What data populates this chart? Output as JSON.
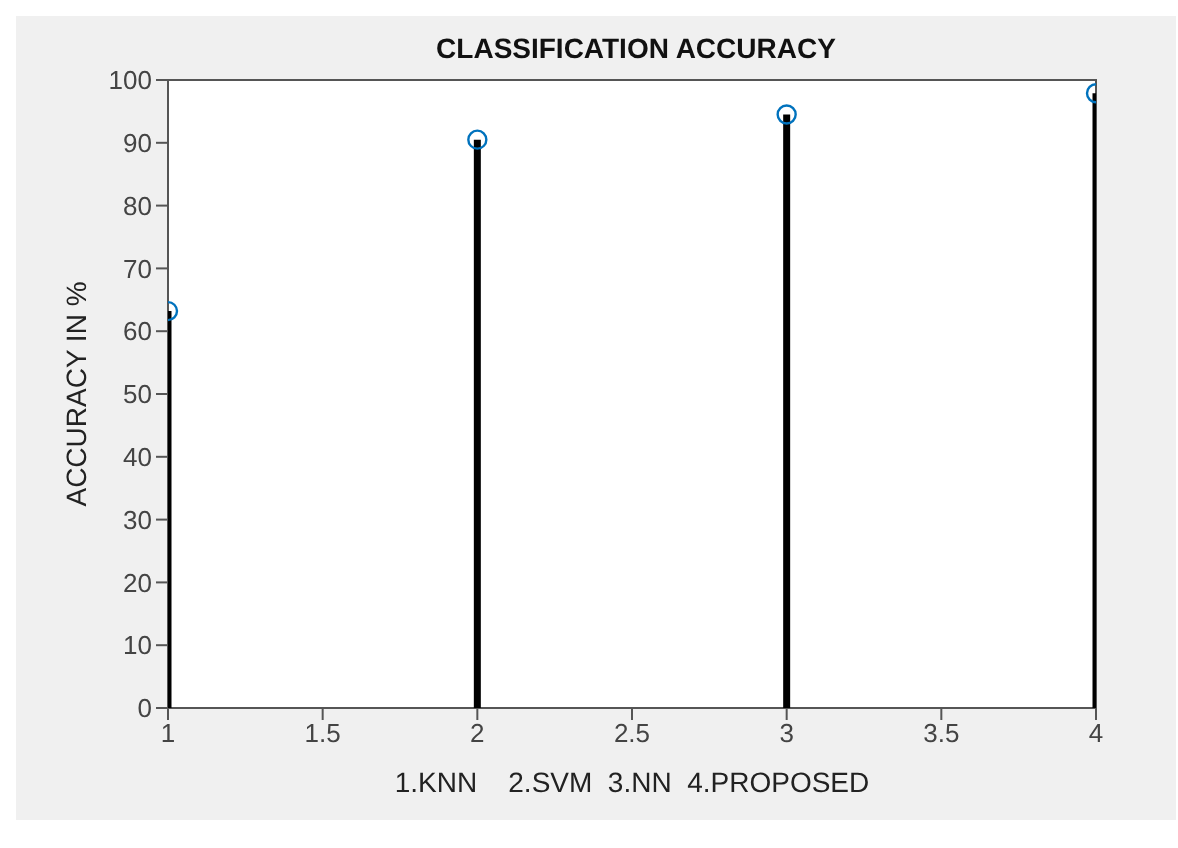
{
  "chart_data": {
    "type": "lollipop",
    "title": "CLASSIFICATION ACCURACY",
    "xlabel": "1.KNN    2.SVM  3.NN  4.PROPOSED",
    "ylabel": "ACCURACY IN %",
    "x": [
      1,
      2,
      3,
      4
    ],
    "series": [
      {
        "color": "#0072bd",
        "values": [
          63.2,
          90.5,
          94.5,
          97.9
        ]
      }
    ],
    "xlim": [
      1,
      4
    ],
    "xticks": [
      1,
      1.5,
      2,
      2.5,
      3,
      3.5,
      4
    ],
    "ylim": [
      0,
      100
    ],
    "yticks": [
      0,
      10,
      20,
      30,
      40,
      50,
      60,
      70,
      80,
      90,
      100
    ],
    "marker": "circle"
  }
}
